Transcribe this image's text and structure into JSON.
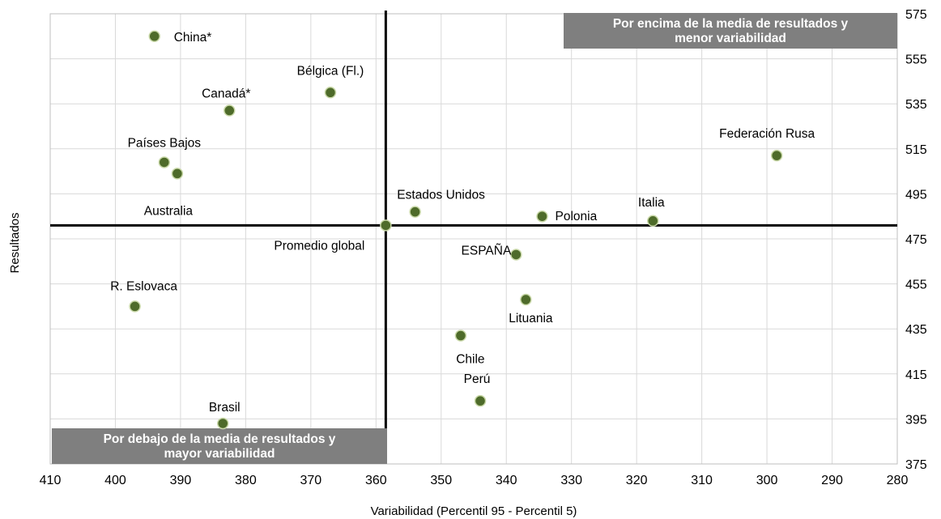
{
  "chart_data": {
    "type": "scatter",
    "title": "",
    "xlabel": "Variabilidad (Percentil 95 - Percentil 5)",
    "ylabel": "Resultados",
    "xlim": [
      410,
      280
    ],
    "x_reversed": true,
    "ylim": [
      375,
      575
    ],
    "x_ticks": [
      410,
      400,
      390,
      380,
      370,
      360,
      350,
      340,
      330,
      320,
      310,
      300,
      290,
      280
    ],
    "y_ticks": [
      375,
      395,
      415,
      435,
      455,
      475,
      495,
      515,
      535,
      555,
      575
    ],
    "y_axis_position": "right",
    "grid": true,
    "point_color": "#4e6b2a",
    "reference_lines": {
      "x": 358.5,
      "y": 481
    },
    "reference_label": "Promedio global",
    "points": [
      {
        "label": "China*",
        "x": 394,
        "y": 565
      },
      {
        "label": "Bélgica (Fl.)",
        "x": 367,
        "y": 540
      },
      {
        "label": "Canadá*",
        "x": 382.5,
        "y": 532
      },
      {
        "label": "Países Bajos",
        "x": 392.5,
        "y": 509
      },
      {
        "label": "Australia",
        "x": 390.5,
        "y": 504
      },
      {
        "label": "Estados Unidos",
        "x": 354,
        "y": 487
      },
      {
        "label": "Polonia",
        "x": 334.5,
        "y": 485
      },
      {
        "label": "Italia",
        "x": 317.5,
        "y": 483
      },
      {
        "label": "Federación Rusa",
        "x": 298.5,
        "y": 512
      },
      {
        "label": "ESPAÑA",
        "x": 338.5,
        "y": 468
      },
      {
        "label": "Lituania",
        "x": 337,
        "y": 448
      },
      {
        "label": "R. Eslovaca",
        "x": 397,
        "y": 445
      },
      {
        "label": "Chile",
        "x": 347,
        "y": 432
      },
      {
        "label": "Perú",
        "x": 344,
        "y": 403
      },
      {
        "label": "Brasil",
        "x": 383.5,
        "y": 393
      }
    ],
    "annotations": [
      {
        "text_lines": [
          "Por encima de la media de resultados y",
          "menor variabilidad"
        ],
        "position": "top-right"
      },
      {
        "text_lines": [
          "Por debajo de la media de resultados y",
          "mayor variabilidad"
        ],
        "position": "bottom-left"
      }
    ]
  }
}
